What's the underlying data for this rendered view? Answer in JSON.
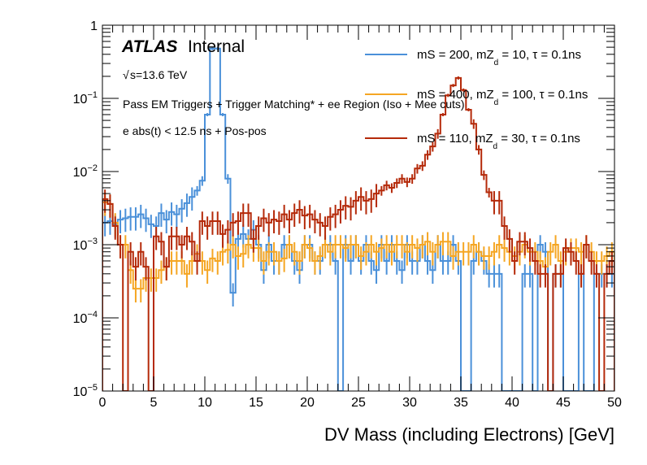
{
  "chart_data": {
    "type": "line",
    "histogram": true,
    "title": "",
    "xlabel": "DV Mass (including Electrons) [GeV]",
    "ylabel": "",
    "xlim": [
      0,
      50
    ],
    "ylim": [
      1e-05,
      1
    ],
    "yscale": "log",
    "bin_width": 0.5,
    "grid": false,
    "legend_position": "top-right",
    "x_ticks": [
      0,
      5,
      10,
      15,
      20,
      25,
      30,
      35,
      40,
      45,
      50
    ],
    "x_tick_labels": [
      "0",
      "5",
      "10",
      "15",
      "20",
      "25",
      "30",
      "35",
      "40",
      "45",
      "50"
    ],
    "y_ticks": [
      1e-05,
      0.0001,
      0.001,
      0.01,
      0.1,
      1
    ],
    "y_tick_labels": [
      {
        "base": "10",
        "exp": "−5"
      },
      {
        "base": "10",
        "exp": "−4"
      },
      {
        "base": "10",
        "exp": "−3"
      },
      {
        "base": "10",
        "exp": "−2"
      },
      {
        "base": "10",
        "exp": "−1"
      },
      {
        "base": "1",
        "exp": ""
      }
    ],
    "annotations": {
      "atlas": "ATLAS",
      "internal": "Internal",
      "energy_sqrt": "√",
      "energy": "s=13.6 TeV",
      "selection1": "Pass EM Triggers + Trigger Matching* + ee Region (Iso + Mee cuts)",
      "selection2": "e abs(t) < 12.5 ns + Pos-pos"
    },
    "series": [
      {
        "name": "mS = 200, mZd = 10, τ = 0.1ns",
        "legend": {
          "pre": "mS = 200, mZ",
          "sub": "d",
          "post": " = 10, τ = 0.1ns"
        },
        "color": "#4a90d9",
        "values": [
          0.002,
          0.0021,
          0.0019,
          0.0022,
          0.0023,
          0.0024,
          0.0024,
          0.0026,
          0.0023,
          0.0019,
          0.0018,
          0.0027,
          0.0022,
          0.0028,
          0.0026,
          0.0031,
          0.0037,
          0.0045,
          0.0055,
          0.0075,
          0.06,
          0.48,
          0.48,
          0.06,
          0.008,
          0.00022,
          0.0012,
          0.0014,
          0.0012,
          0.0016,
          0.001,
          0.00045,
          0.001,
          0.0006,
          0.0006,
          0.001,
          0.001,
          0.0006,
          0.00045,
          0.001,
          0.001,
          0.0006,
          0.0006,
          0.001,
          0.001,
          0.0006,
          0.0,
          0.001,
          0.0006,
          0.001,
          0.0006,
          0.001,
          0.0006,
          0.00045,
          0.001,
          0.0006,
          0.001,
          0.0006,
          0.00045,
          0.001,
          0.0006,
          0.0006,
          0.001,
          0.0006,
          0.00045,
          0.001,
          0.0006,
          0.0006,
          0.001,
          0.0006,
          0.0,
          0.0,
          0.0006,
          0.0008,
          0.0006,
          0.0004,
          0.0004,
          0.0004,
          0.0,
          0.0,
          0.0,
          0.0,
          0.0004,
          0.0004,
          0.0,
          0.001,
          0.0008,
          0.0,
          0.0004,
          0.0004,
          0.0,
          0.0,
          0.0,
          0.0004,
          0.0,
          0.0,
          0.0004,
          0.0004,
          0.0004,
          0.0004
        ]
      },
      {
        "name": "mS = 400, mZd = 100, τ = 0.1ns",
        "legend": {
          "pre": "mS = 400, mZ",
          "sub": "d",
          "post": " = 100, τ = 0.1ns"
        },
        "color": "#f5a623",
        "values": [
          0.0038,
          0.0036,
          0.002,
          0.001,
          0.001,
          0.00045,
          0.00025,
          0.00025,
          0.00035,
          0.00035,
          0.00035,
          0.00045,
          0.0005,
          0.0006,
          0.0006,
          0.0006,
          0.0004,
          0.0006,
          0.00075,
          0.0006,
          0.00045,
          0.00065,
          0.0006,
          0.0008,
          0.00085,
          0.001,
          0.0007,
          0.00075,
          0.001,
          0.0009,
          0.0009,
          0.0006,
          0.0008,
          0.0008,
          0.0006,
          0.00065,
          0.001,
          0.0008,
          0.0006,
          0.001,
          0.0009,
          0.0006,
          0.0007,
          0.001,
          0.0008,
          0.001,
          0.001,
          0.0009,
          0.001,
          0.001,
          0.0007,
          0.0008,
          0.001,
          0.0008,
          0.0009,
          0.001,
          0.0008,
          0.001,
          0.001,
          0.0008,
          0.001,
          0.0009,
          0.001,
          0.0011,
          0.0008,
          0.001,
          0.0011,
          0.0011,
          0.0007,
          0.0008,
          0.0008,
          0.0008,
          0.001,
          0.0008,
          0.0007,
          0.0007,
          0.0008,
          0.001,
          0.0009,
          0.0008,
          0.0007,
          0.0008,
          0.001,
          0.0008,
          0.0008,
          0.0006,
          0.0005,
          0.0008,
          0.001,
          0.0006,
          0.0008,
          0.0009,
          0.0009,
          0.0008,
          0.001,
          0.0008,
          0.0006,
          0.0006,
          0.0007,
          0.0008
        ]
      },
      {
        "name": "mS = 110, mZd = 30, τ = 0.1ns",
        "legend": {
          "pre": "mS = 110, mZ",
          "sub": "d",
          "post": " = 30, τ = 0.1ns"
        },
        "color": "#b52a0a",
        "values": [
          0.0042,
          0.0036,
          0.0018,
          0.001,
          0.0,
          0.0008,
          0.0005,
          0.0008,
          0.0005,
          0.0,
          0.0013,
          0.0011,
          0.0005,
          0.0013,
          0.0013,
          0.001,
          0.0013,
          0.0011,
          0.0006,
          0.0021,
          0.0018,
          0.0021,
          0.0021,
          0.0014,
          0.0016,
          0.002,
          0.0021,
          0.0027,
          0.0027,
          0.0012,
          0.0018,
          0.0023,
          0.002,
          0.0022,
          0.0021,
          0.0026,
          0.0022,
          0.0027,
          0.003,
          0.0025,
          0.0026,
          0.0022,
          0.002,
          0.0018,
          0.0024,
          0.0026,
          0.003,
          0.0034,
          0.0033,
          0.004,
          0.0045,
          0.004,
          0.0042,
          0.005,
          0.0055,
          0.0065,
          0.006,
          0.007,
          0.008,
          0.0072,
          0.008,
          0.011,
          0.012,
          0.017,
          0.022,
          0.033,
          0.06,
          0.11,
          0.15,
          0.19,
          0.13,
          0.07,
          0.045,
          0.02,
          0.009,
          0.0052,
          0.004,
          0.004,
          0.0018,
          0.0012,
          0.0006,
          0.0011,
          0.0011,
          0.0009,
          0.0006,
          0.0004,
          0.0004,
          0.0,
          0.0004,
          0.0004,
          0.0009,
          0.0008,
          0.0006,
          0.0004,
          0.001,
          0.0006,
          0.0004,
          0.0,
          0.0004,
          0.0006
        ]
      }
    ]
  }
}
